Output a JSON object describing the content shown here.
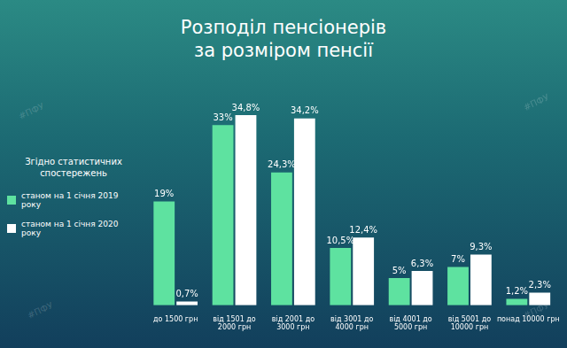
{
  "chart_data": {
    "type": "bar",
    "title": [
      "Розподіл пенсіонерів",
      "за розміром пенсії"
    ],
    "annotations": [
      "Згідно статистичних спостережень",
      "#ПФУ"
    ],
    "categories": [
      "до 1500 грн",
      "від 1501 до 2000 грн",
      "від 2001 до 3000 грн",
      "від 3001 до 4000 грн",
      "від 4001 до 5000 грн",
      "від 5001 до 10000 грн",
      "понад 10000 грн"
    ],
    "series": [
      {
        "name": "станом на 1 січня 2019 року",
        "color": "#5ee2a0",
        "values": [
          19,
          33,
          24.3,
          10.5,
          5,
          7,
          1.2
        ],
        "value_labels": [
          "19%",
          "33%",
          "24,3%",
          "10,5%",
          "5%",
          "7%",
          "1,2%"
        ]
      },
      {
        "name": "станом на 1 січня 2020 року",
        "color": "#ffffff",
        "values": [
          0.7,
          34.8,
          34.2,
          12.4,
          6.3,
          9.3,
          2.3
        ],
        "value_labels": [
          "0,7%",
          "34,8%",
          "34,2%",
          "12,4%",
          "6,3%",
          "9,3%",
          "2,3%"
        ]
      }
    ],
    "ylim": [
      0,
      40
    ],
    "grid": false,
    "legend": "left",
    "data_labels": true,
    "tick_labels": "x"
  }
}
